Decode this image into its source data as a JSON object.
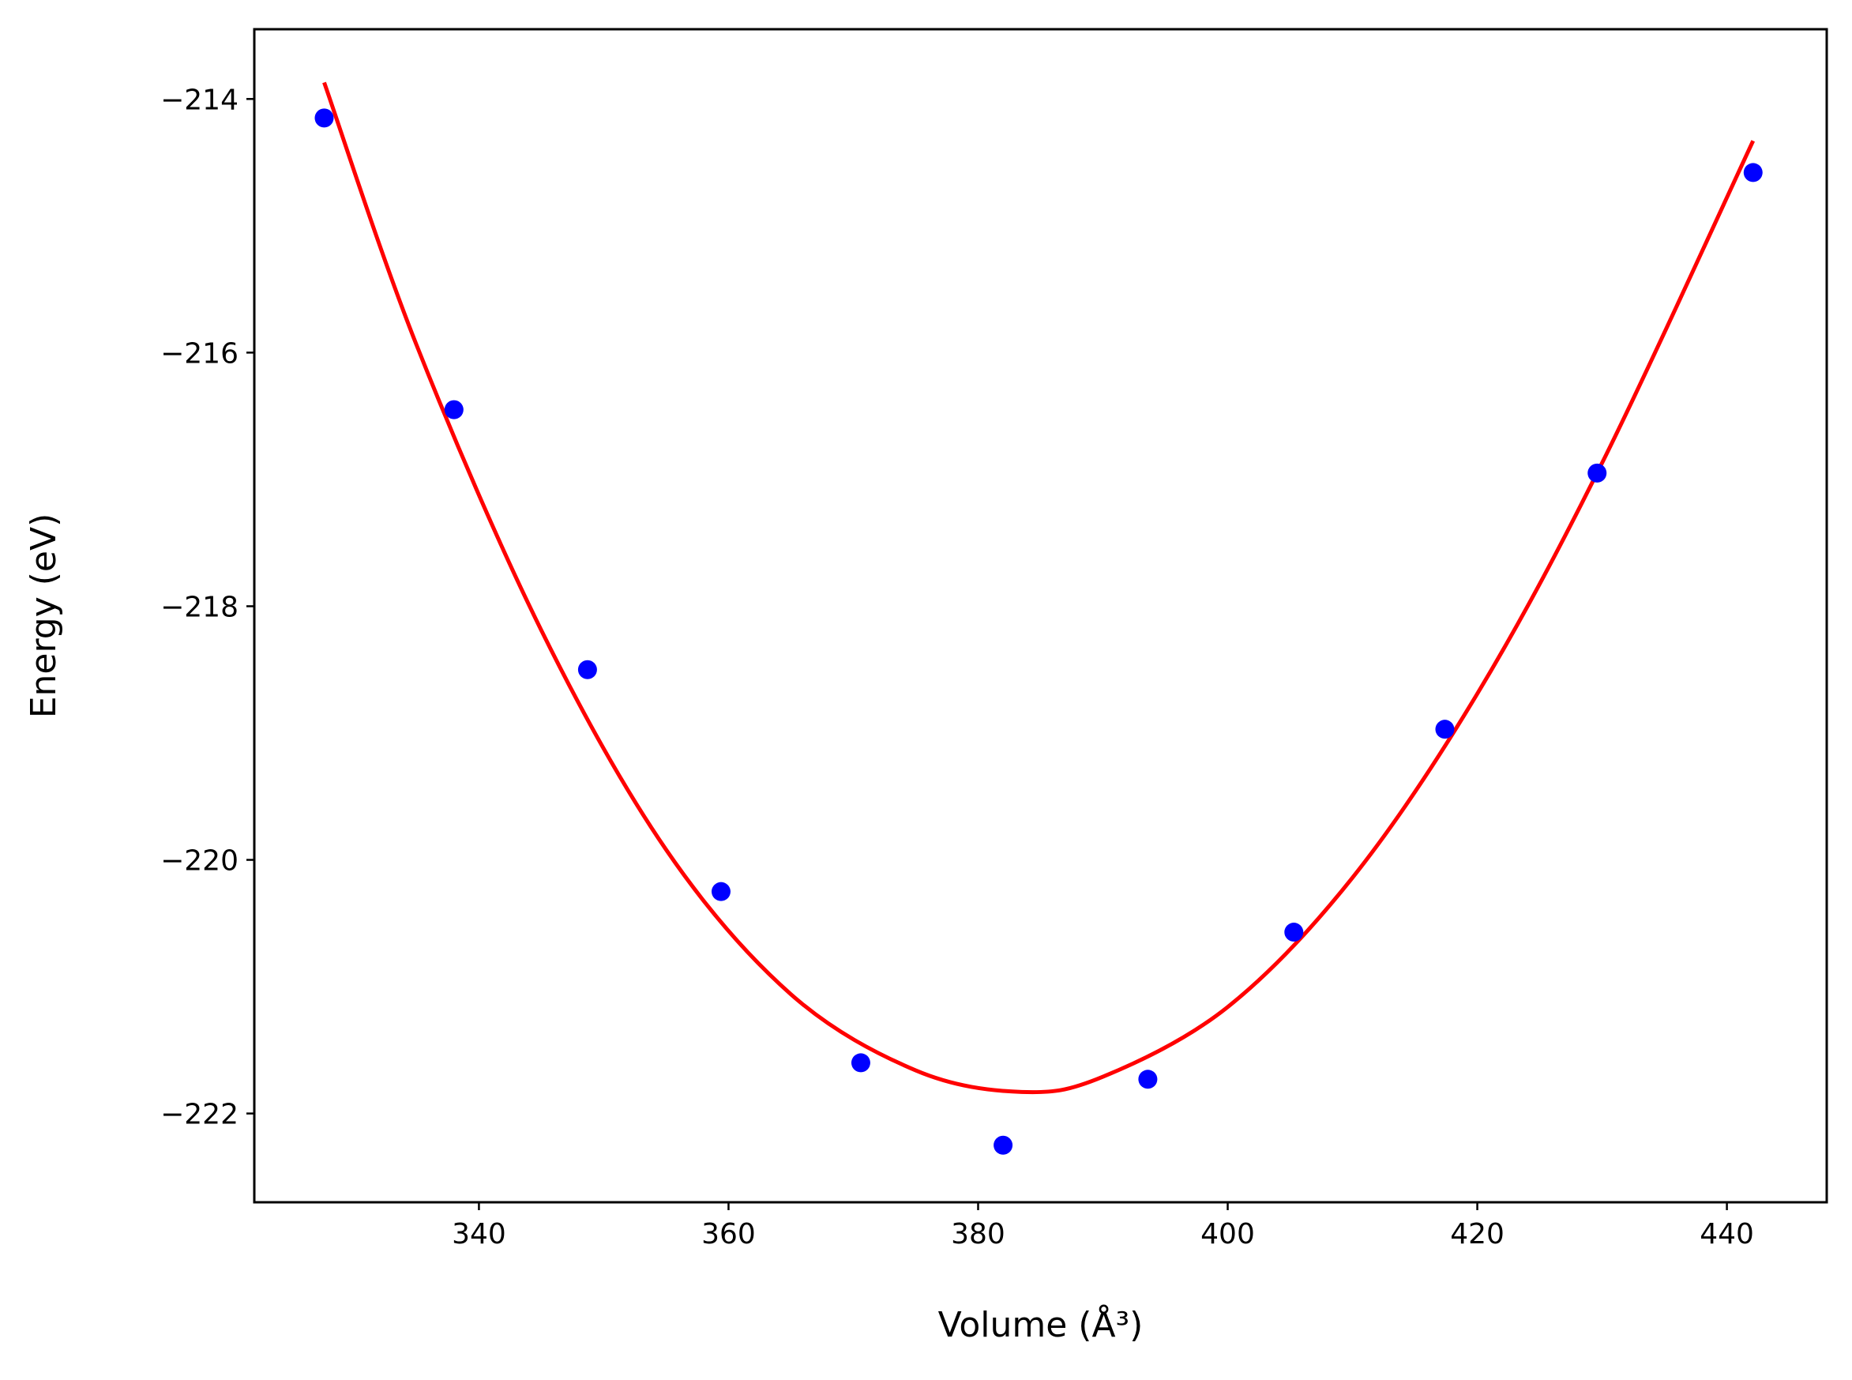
{
  "chart_data": {
    "type": "scatter",
    "title": "",
    "xlabel": "Volume (Å³)",
    "ylabel": "Energy (eV)",
    "xlim": [
      322,
      448
    ],
    "ylim": [
      -222.7,
      -213.45
    ],
    "grid": false,
    "legend": "none",
    "x_ticks": [
      340,
      360,
      380,
      400,
      420,
      440
    ],
    "y_ticks": [
      -222,
      -220,
      -218,
      -216,
      -214
    ],
    "x_tick_labels": [
      "340",
      "360",
      "380",
      "400",
      "420",
      "440"
    ],
    "y_tick_labels": [
      "−222",
      "−220",
      "−218",
      "−216",
      "−214"
    ],
    "series": [
      {
        "kind": "points",
        "color": "#0000ff",
        "x": [
          327.6,
          338.0,
          348.7,
          359.4,
          370.6,
          382.0,
          393.6,
          405.3,
          417.4,
          429.6,
          442.1
        ],
        "y": [
          -214.15,
          -216.45,
          -218.5,
          -220.25,
          -221.6,
          -222.25,
          -221.73,
          -220.57,
          -218.97,
          -216.95,
          -214.58
        ]
      },
      {
        "kind": "fit-curve",
        "color": "#ff0000",
        "x": [
          327.6,
          335,
          345,
          355,
          365,
          375,
          383.5,
          390,
          400,
          410,
          420,
          430,
          442.1
        ],
        "y": [
          -213.87,
          -215.94,
          -218.19,
          -219.92,
          -221.06,
          -221.66,
          -221.83,
          -221.71,
          -221.16,
          -220.14,
          -218.69,
          -216.87,
          -214.33
        ]
      }
    ],
    "colors": {
      "axes": "#000000",
      "points": "#0000ff",
      "fit": "#ff0000",
      "background": "#ffffff"
    }
  }
}
